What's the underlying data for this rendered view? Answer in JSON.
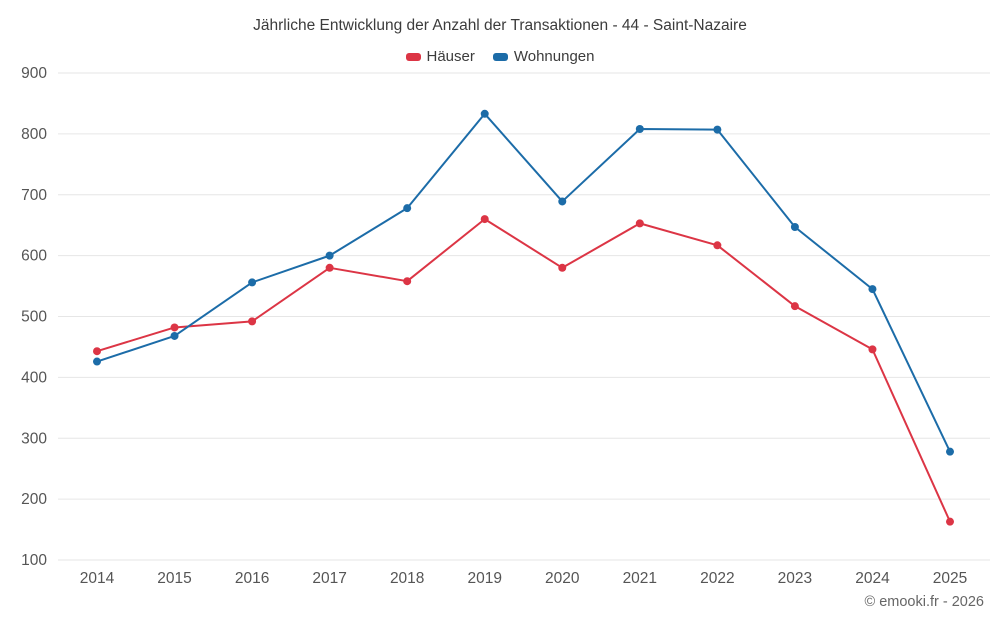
{
  "chart_data": {
    "type": "line",
    "title": "Jährliche Entwicklung der Anzahl der Transaktionen - 44 - Saint-Nazaire",
    "x": [
      "2014",
      "2015",
      "2016",
      "2017",
      "2018",
      "2019",
      "2020",
      "2021",
      "2022",
      "2023",
      "2024",
      "2025"
    ],
    "series": [
      {
        "name": "Häuser",
        "color": "#dc3545",
        "values": [
          443,
          482,
          492,
          580,
          558,
          660,
          580,
          653,
          617,
          517,
          446,
          163
        ]
      },
      {
        "name": "Wohnungen",
        "color": "#1c6ca8",
        "values": [
          426,
          468,
          556,
          600,
          678,
          833,
          689,
          808,
          807,
          647,
          545,
          278
        ]
      }
    ],
    "ylim": [
      100,
      900
    ],
    "yticks": [
      100,
      200,
      300,
      400,
      500,
      600,
      700,
      800,
      900
    ],
    "grid": "horizontal",
    "legend_position": "top",
    "grid_color": "#e6e6e6",
    "tick_color": "#555555"
  },
  "footer": {
    "copyright": "© emooki.fr - 2026"
  }
}
